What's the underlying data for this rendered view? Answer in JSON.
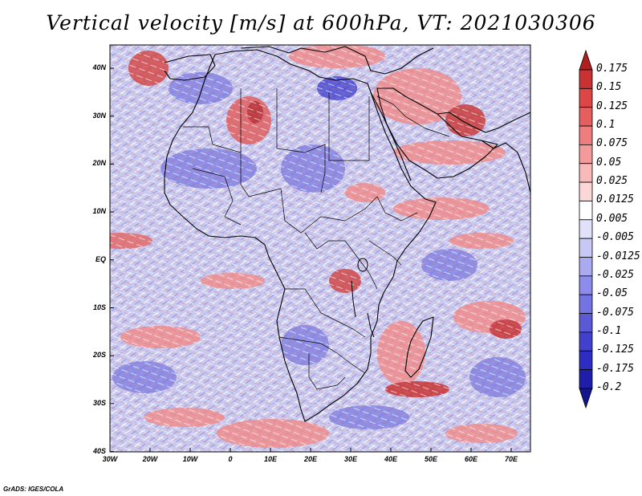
{
  "title": "Vertical velocity [m/s] at 600hPa, VT: 2021030306",
  "map": {
    "lat_labels": [
      "40N",
      "30N",
      "20N",
      "10N",
      "EQ",
      "10S",
      "20S",
      "30S",
      "40S"
    ],
    "lon_labels": [
      "30W",
      "20W",
      "10W",
      "0",
      "10E",
      "20E",
      "30E",
      "40E",
      "50E",
      "60E",
      "70E"
    ],
    "lat_range": [
      -40,
      45
    ],
    "lon_range": [
      -30,
      75
    ]
  },
  "colorbar": {
    "levels": [
      "0.175",
      "0.15",
      "0.125",
      "0.1",
      "0.075",
      "0.05",
      "0.025",
      "0.0125",
      "0.005",
      "-0.005",
      "-0.0125",
      "-0.025",
      "-0.05",
      "-0.075",
      "-0.1",
      "-0.125",
      "-0.175",
      "-0.2"
    ],
    "colors": [
      "#b01e1e",
      "#c83232",
      "#dc4646",
      "#e65f5f",
      "#ee7d7d",
      "#f39b9b",
      "#f8b9b9",
      "#fcd7d7",
      "#ffffff",
      "#e1e1fa",
      "#c8c8f5",
      "#aaaaf0",
      "#8c8ceb",
      "#7373e1",
      "#5a5ad7",
      "#4141cd",
      "#2d2dc3",
      "#1e1eaa",
      "#14148c"
    ]
  },
  "credit": "GrADS: IGES/COLA"
}
